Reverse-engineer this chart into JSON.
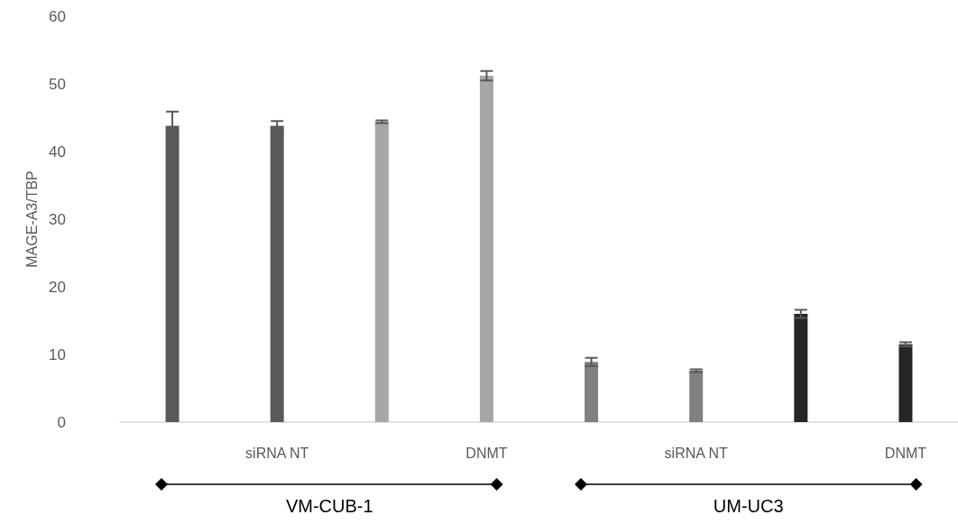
{
  "chart_data": {
    "type": "bar",
    "ylabel": "MAGE-A3/TBP",
    "categories": [
      null,
      "siRNA NT",
      null,
      "DNMT",
      null,
      "siRNA NT",
      null,
      "DNMT"
    ],
    "values": [
      43.8,
      43.8,
      44.4,
      51.2,
      8.9,
      7.6,
      16,
      11.5
    ],
    "errors": [
      2.1,
      0.7,
      0.2,
      0.7,
      0.6,
      0.2,
      0.6,
      0.3
    ],
    "colors": [
      "#595959",
      "#595959",
      "#a6a6a6",
      "#a6a6a6",
      "#808080",
      "#808080",
      "#262626",
      "#262626"
    ],
    "ylim": [
      0,
      60
    ],
    "yticks": [
      0,
      10,
      20,
      30,
      40,
      50,
      60
    ],
    "grid": false,
    "annotations": [
      "VM-CUB-1",
      "UM-UC3"
    ]
  }
}
